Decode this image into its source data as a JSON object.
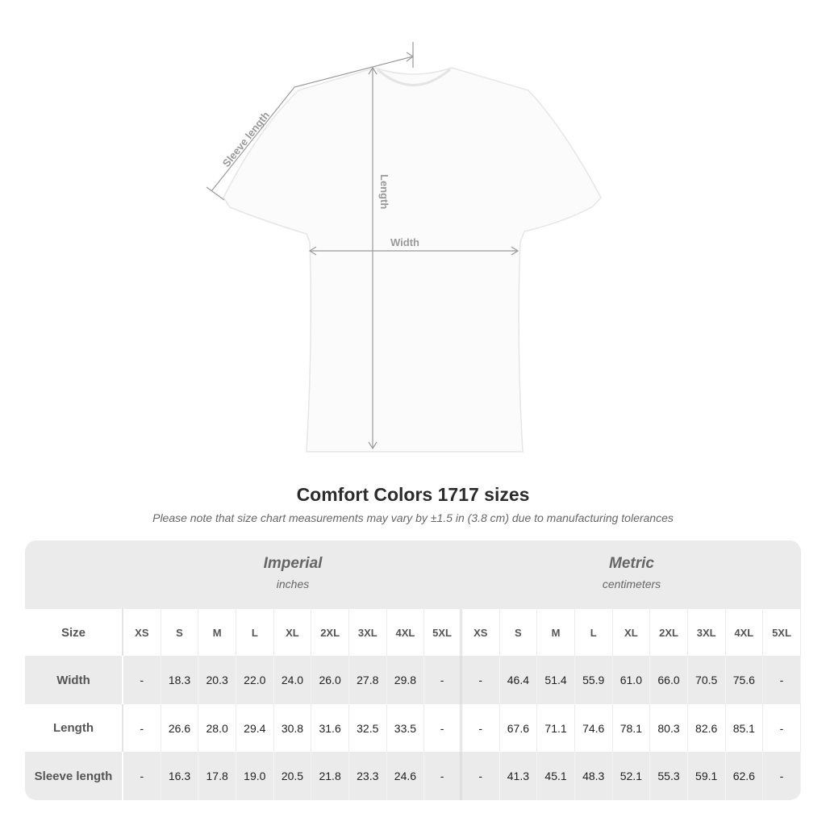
{
  "diagram": {
    "sleeve_label": "Sleeve length",
    "length_label": "Length",
    "width_label": "Width",
    "line_color": "#9a9a9a"
  },
  "title": "Comfort Colors 1717 sizes",
  "note": "Please note that size chart measurements may vary by ±1.5 in (3.8 cm) due to manufacturing tolerances",
  "table": {
    "imperial": {
      "label": "Imperial",
      "unit": "inches"
    },
    "metric": {
      "label": "Metric",
      "unit": "centimeters"
    },
    "size_label": "Size",
    "sizes": [
      "XS",
      "S",
      "M",
      "L",
      "XL",
      "2XL",
      "3XL",
      "4XL",
      "5XL"
    ],
    "rows": [
      {
        "label": "Width",
        "imperial": [
          "-",
          "18.3",
          "20.3",
          "22.0",
          "24.0",
          "26.0",
          "27.8",
          "29.8",
          "-"
        ],
        "metric": [
          "-",
          "46.4",
          "51.4",
          "55.9",
          "61.0",
          "66.0",
          "70.5",
          "75.6",
          "-"
        ]
      },
      {
        "label": "Length",
        "imperial": [
          "-",
          "26.6",
          "28.0",
          "29.4",
          "30.8",
          "31.6",
          "32.5",
          "33.5",
          "-"
        ],
        "metric": [
          "-",
          "67.6",
          "71.1",
          "74.6",
          "78.1",
          "80.3",
          "82.6",
          "85.1",
          "-"
        ]
      },
      {
        "label": "Sleeve length",
        "imperial": [
          "-",
          "16.3",
          "17.8",
          "19.0",
          "20.5",
          "21.8",
          "23.3",
          "24.6",
          "-"
        ],
        "metric": [
          "-",
          "41.3",
          "45.1",
          "48.3",
          "52.1",
          "55.3",
          "59.1",
          "62.6",
          "-"
        ]
      }
    ]
  }
}
